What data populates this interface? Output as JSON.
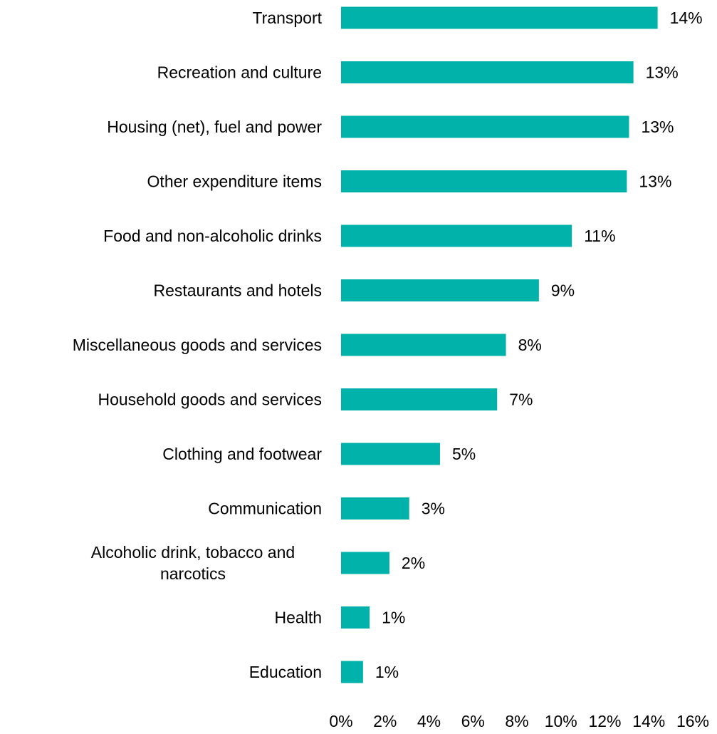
{
  "chart_data": {
    "type": "bar",
    "orientation": "horizontal",
    "title": "",
    "xlabel": "",
    "ylabel": "",
    "categories": [
      "Transport",
      "Recreation and culture",
      "Housing (net), fuel and power",
      "Other expenditure items",
      "Food and non-alcoholic drinks",
      "Restaurants and hotels",
      "Miscellaneous goods and services",
      "Household goods and services",
      "Clothing and footwear",
      "Communication",
      "Alcoholic drink, tobacco and narcotics",
      "Health",
      "Education"
    ],
    "category_lines": [
      [
        "Transport"
      ],
      [
        "Recreation and culture"
      ],
      [
        "Housing (net), fuel and power"
      ],
      [
        "Other expenditure items"
      ],
      [
        "Food and non-alcoholic drinks"
      ],
      [
        "Restaurants and hotels"
      ],
      [
        "Miscellaneous goods and services"
      ],
      [
        "Household goods and services"
      ],
      [
        "Clothing and footwear"
      ],
      [
        "Communication"
      ],
      [
        "Alcoholic drink, tobacco and",
        "narcotics"
      ],
      [
        "Health"
      ],
      [
        "Education"
      ]
    ],
    "values": [
      14.4,
      13.3,
      13.1,
      13.0,
      10.5,
      9.0,
      7.5,
      7.1,
      4.5,
      3.1,
      2.2,
      1.3,
      1.0
    ],
    "data_labels": [
      "14%",
      "13%",
      "13%",
      "13%",
      "11%",
      "9%",
      "8%",
      "7%",
      "5%",
      "3%",
      "2%",
      "1%",
      "1%"
    ],
    "xlim": [
      0,
      16
    ],
    "xticks": [
      0,
      2,
      4,
      6,
      8,
      10,
      12,
      14,
      16
    ],
    "xtick_labels": [
      "0%",
      "2%",
      "4%",
      "6%",
      "8%",
      "10%",
      "12%",
      "14%",
      "16%"
    ],
    "grid": false,
    "legend": "none",
    "bar_color": "#00b2a9"
  }
}
